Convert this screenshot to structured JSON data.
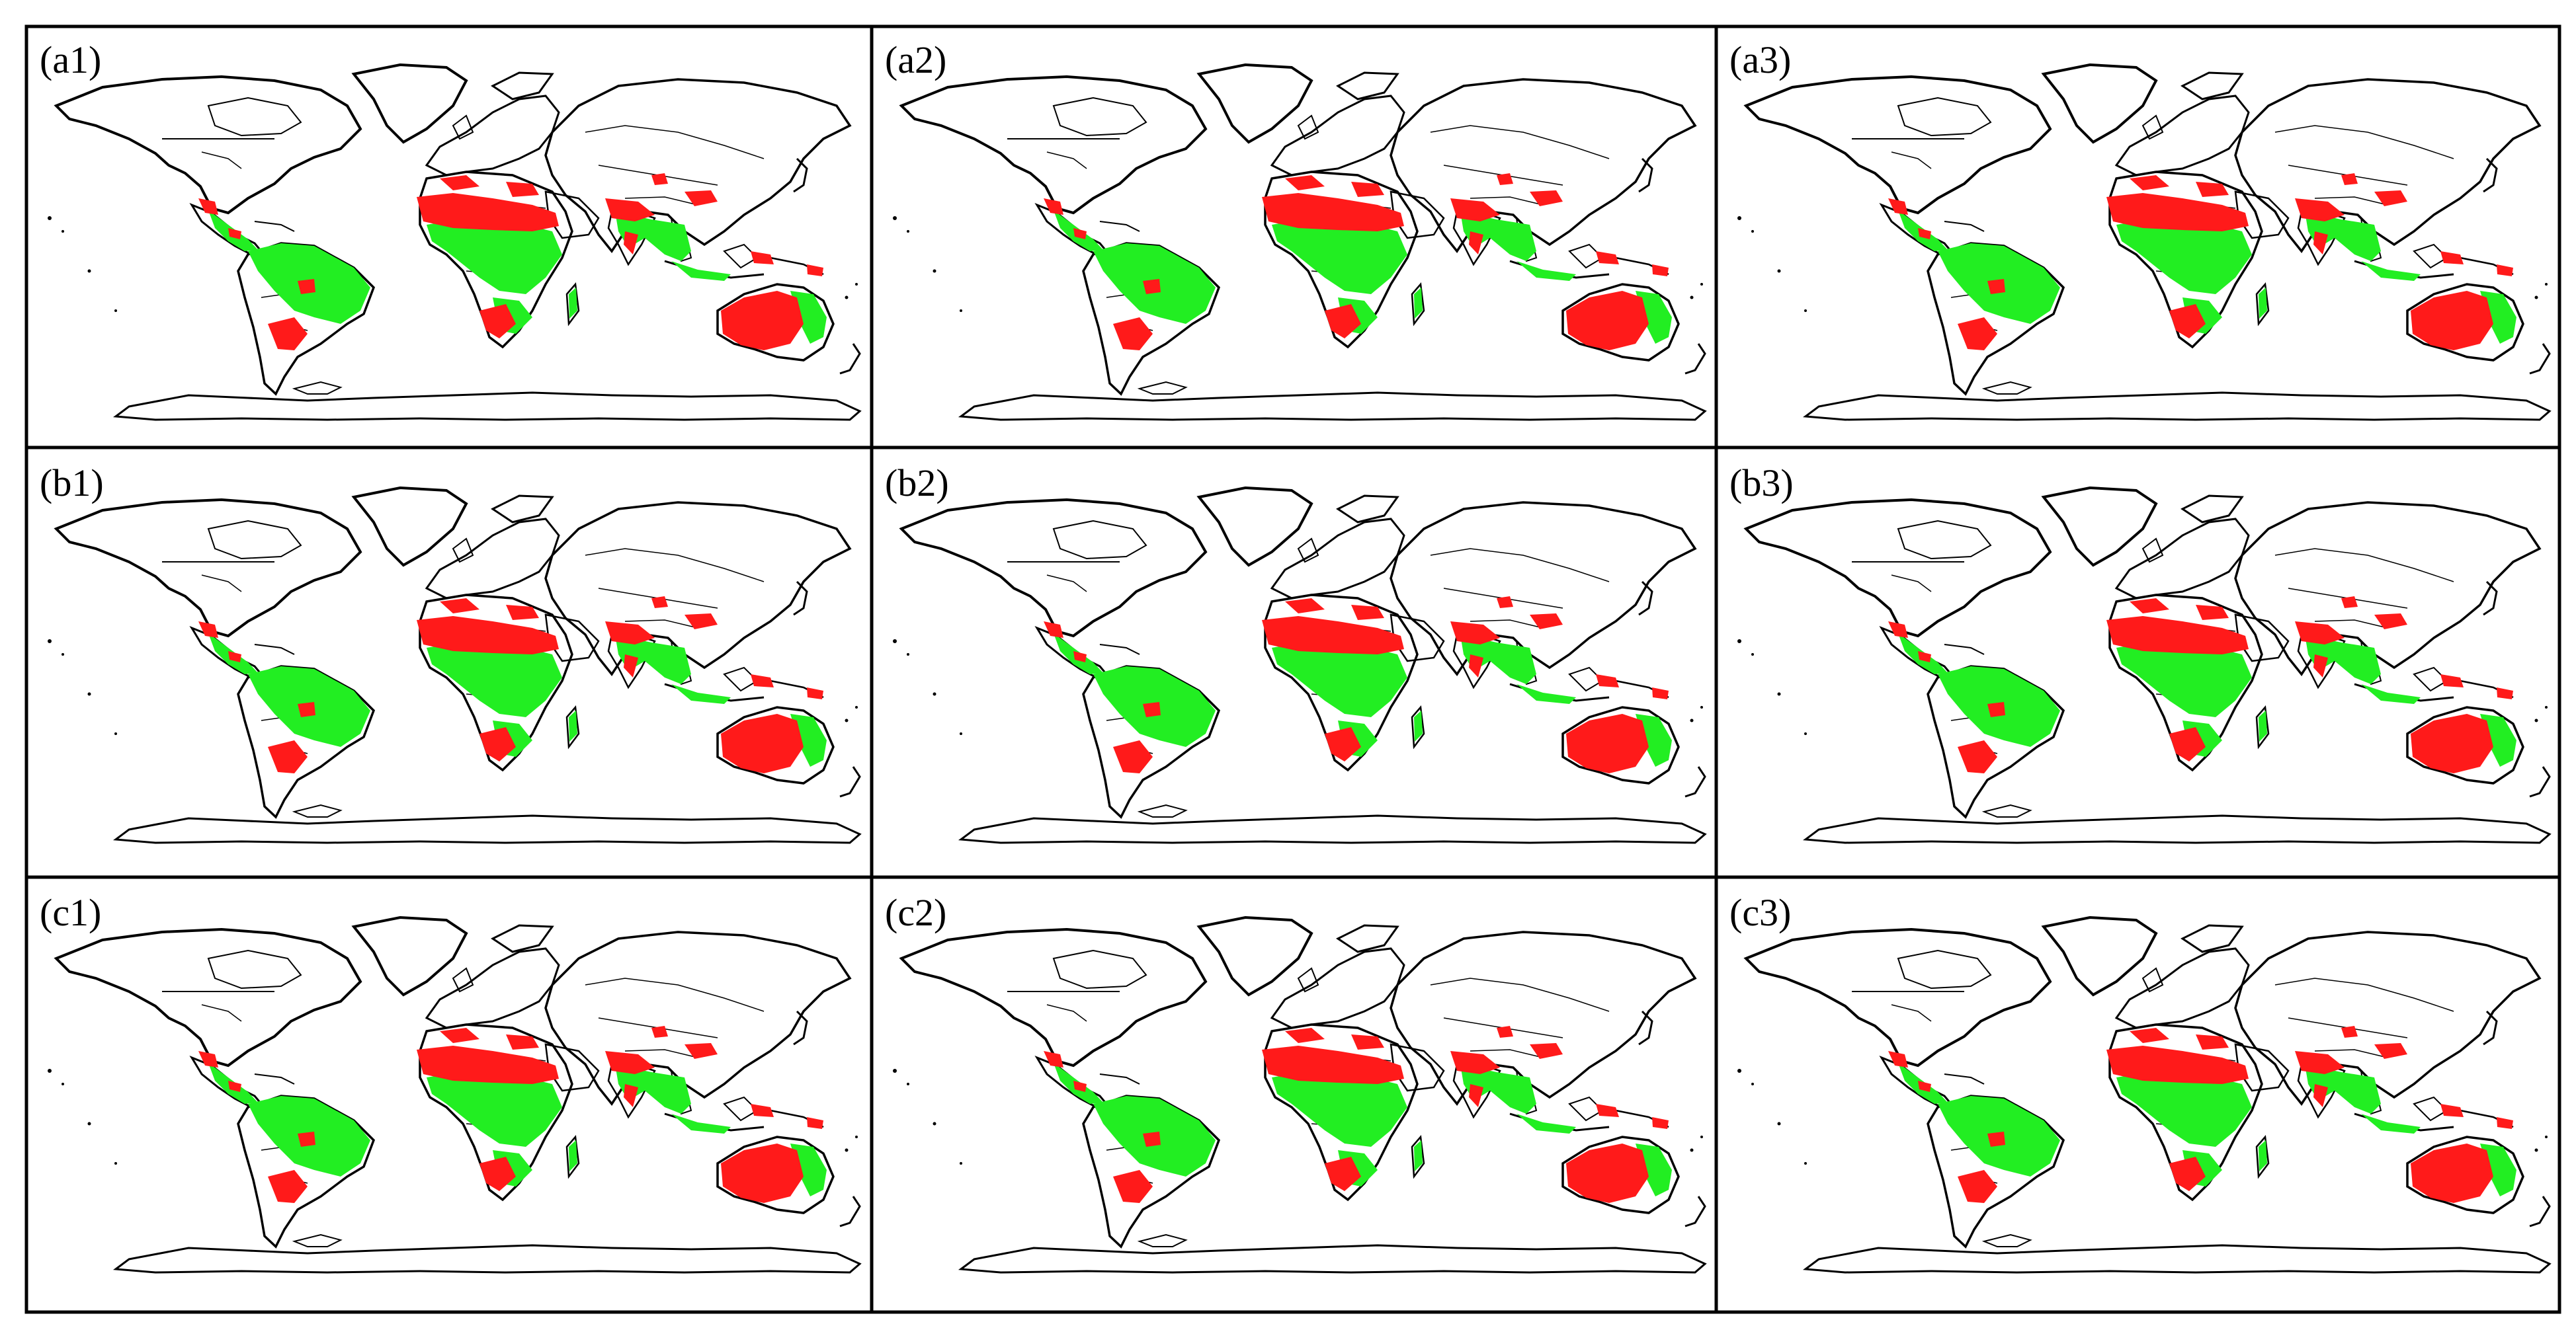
{
  "figure": {
    "rows": [
      {
        "panels": [
          {
            "label": "(a1)"
          },
          {
            "label": "(a2)"
          },
          {
            "label": "(a3)"
          }
        ]
      },
      {
        "panels": [
          {
            "label": "(b1)"
          },
          {
            "label": "(b2)"
          },
          {
            "label": "(b3)"
          }
        ]
      },
      {
        "panels": [
          {
            "label": "(c1)"
          },
          {
            "label": "(c2)"
          },
          {
            "label": "(c3)"
          }
        ]
      }
    ],
    "colors": {
      "suitable": "#22ee22",
      "highly_suitable": "#ff1a1a",
      "outline": "#000000",
      "background": "#ffffff"
    }
  }
}
